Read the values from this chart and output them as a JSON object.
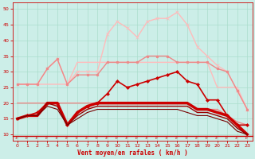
{
  "bg_color": "#cceee8",
  "grid_color": "#aaddcc",
  "xlabel": "Vent moyen/en rafales ( km/h )",
  "xlabel_color": "#cc0000",
  "tick_color": "#cc0000",
  "ylim": [
    8,
    52
  ],
  "xlim": [
    -0.5,
    23.5
  ],
  "yticks": [
    10,
    15,
    20,
    25,
    30,
    35,
    40,
    45,
    50
  ],
  "xticks": [
    0,
    1,
    2,
    3,
    4,
    5,
    6,
    7,
    8,
    9,
    10,
    11,
    12,
    13,
    14,
    15,
    16,
    17,
    18,
    19,
    20,
    21,
    22,
    23
  ],
  "lines": [
    {
      "x": [
        0,
        1,
        2,
        3,
        4,
        5,
        6,
        7,
        8,
        9,
        10,
        11,
        12,
        13,
        14,
        15,
        16,
        17,
        18,
        19,
        20,
        21,
        22,
        23
      ],
      "y": [
        26,
        26,
        26,
        26,
        26,
        26,
        33,
        33,
        33,
        33,
        33,
        33,
        33,
        33,
        33,
        33,
        33,
        33,
        33,
        33,
        25,
        25,
        25,
        18
      ],
      "color": "#ffbbbb",
      "lw": 1.0,
      "marker": null,
      "ms": 0
    },
    {
      "x": [
        0,
        1,
        2,
        3,
        4,
        5,
        6,
        7,
        8,
        9,
        10,
        11,
        12,
        13,
        14,
        15,
        16,
        17,
        18,
        19,
        20,
        21,
        22,
        23
      ],
      "y": [
        26,
        26,
        26,
        31,
        34,
        26,
        30,
        30,
        30,
        42,
        46,
        44,
        41,
        46,
        47,
        47,
        49,
        45,
        38,
        35,
        32,
        30,
        24,
        18
      ],
      "color": "#ffbbbb",
      "lw": 1.0,
      "marker": "x",
      "ms": 2.5
    },
    {
      "x": [
        0,
        1,
        2,
        3,
        4,
        5,
        6,
        7,
        8,
        9,
        10,
        11,
        12,
        13,
        14,
        15,
        16,
        17,
        18,
        19,
        20,
        21,
        22,
        23
      ],
      "y": [
        26,
        26,
        26,
        31,
        34,
        26,
        29,
        29,
        29,
        33,
        33,
        33,
        33,
        35,
        35,
        35,
        33,
        33,
        33,
        33,
        31,
        30,
        24,
        18
      ],
      "color": "#ee8888",
      "lw": 1.0,
      "marker": "o",
      "ms": 2.0
    },
    {
      "x": [
        0,
        1,
        2,
        3,
        4,
        5,
        6,
        7,
        8,
        9,
        10,
        11,
        12,
        13,
        14,
        15,
        16,
        17,
        18,
        19,
        20,
        21,
        22,
        23
      ],
      "y": [
        20,
        20,
        20,
        20,
        20,
        20,
        20,
        20,
        20,
        20,
        20,
        20,
        20,
        20,
        20,
        20,
        20,
        20,
        18,
        18,
        18,
        16,
        14,
        13
      ],
      "color": "#ee8888",
      "lw": 1.0,
      "marker": null,
      "ms": 0
    },
    {
      "x": [
        0,
        1,
        2,
        3,
        4,
        5,
        6,
        7,
        8,
        9,
        10,
        11,
        12,
        13,
        14,
        15,
        16,
        17,
        18,
        19,
        20,
        21,
        22,
        23
      ],
      "y": [
        15,
        16,
        17,
        20,
        20,
        13,
        17,
        19,
        20,
        23,
        27,
        25,
        26,
        27,
        28,
        29,
        30,
        27,
        26,
        21,
        21,
        16,
        13,
        13
      ],
      "color": "#cc0000",
      "lw": 1.2,
      "marker": "D",
      "ms": 2.0
    },
    {
      "x": [
        0,
        1,
        2,
        3,
        4,
        5,
        6,
        7,
        8,
        9,
        10,
        11,
        12,
        13,
        14,
        15,
        16,
        17,
        18,
        19,
        20,
        21,
        22,
        23
      ],
      "y": [
        15,
        16,
        16,
        20,
        20,
        13,
        17,
        19,
        20,
        20,
        20,
        20,
        20,
        20,
        20,
        20,
        20,
        20,
        18,
        18,
        17,
        16,
        13,
        10
      ],
      "color": "#cc0000",
      "lw": 2.5,
      "marker": null,
      "ms": 0
    },
    {
      "x": [
        0,
        1,
        2,
        3,
        4,
        5,
        6,
        7,
        8,
        9,
        10,
        11,
        12,
        13,
        14,
        15,
        16,
        17,
        18,
        19,
        20,
        21,
        22,
        23
      ],
      "y": [
        15,
        16,
        16,
        20,
        19,
        13,
        16,
        18,
        19,
        19,
        19,
        19,
        19,
        19,
        19,
        19,
        19,
        19,
        17,
        17,
        16,
        15,
        12,
        10
      ],
      "color": "#990000",
      "lw": 1.0,
      "marker": null,
      "ms": 0
    },
    {
      "x": [
        0,
        1,
        2,
        3,
        4,
        5,
        6,
        7,
        8,
        9,
        10,
        11,
        12,
        13,
        14,
        15,
        16,
        17,
        18,
        19,
        20,
        21,
        22,
        23
      ],
      "y": [
        15,
        16,
        16,
        19,
        18,
        13,
        15,
        17,
        18,
        18,
        18,
        18,
        18,
        18,
        18,
        18,
        18,
        17,
        16,
        16,
        15,
        14,
        11,
        10
      ],
      "color": "#770000",
      "lw": 0.8,
      "marker": null,
      "ms": 0
    }
  ],
  "arrow_color": "#cc4444",
  "bottom_line_color": "#cc0000",
  "bottom_line_y": 9.5
}
